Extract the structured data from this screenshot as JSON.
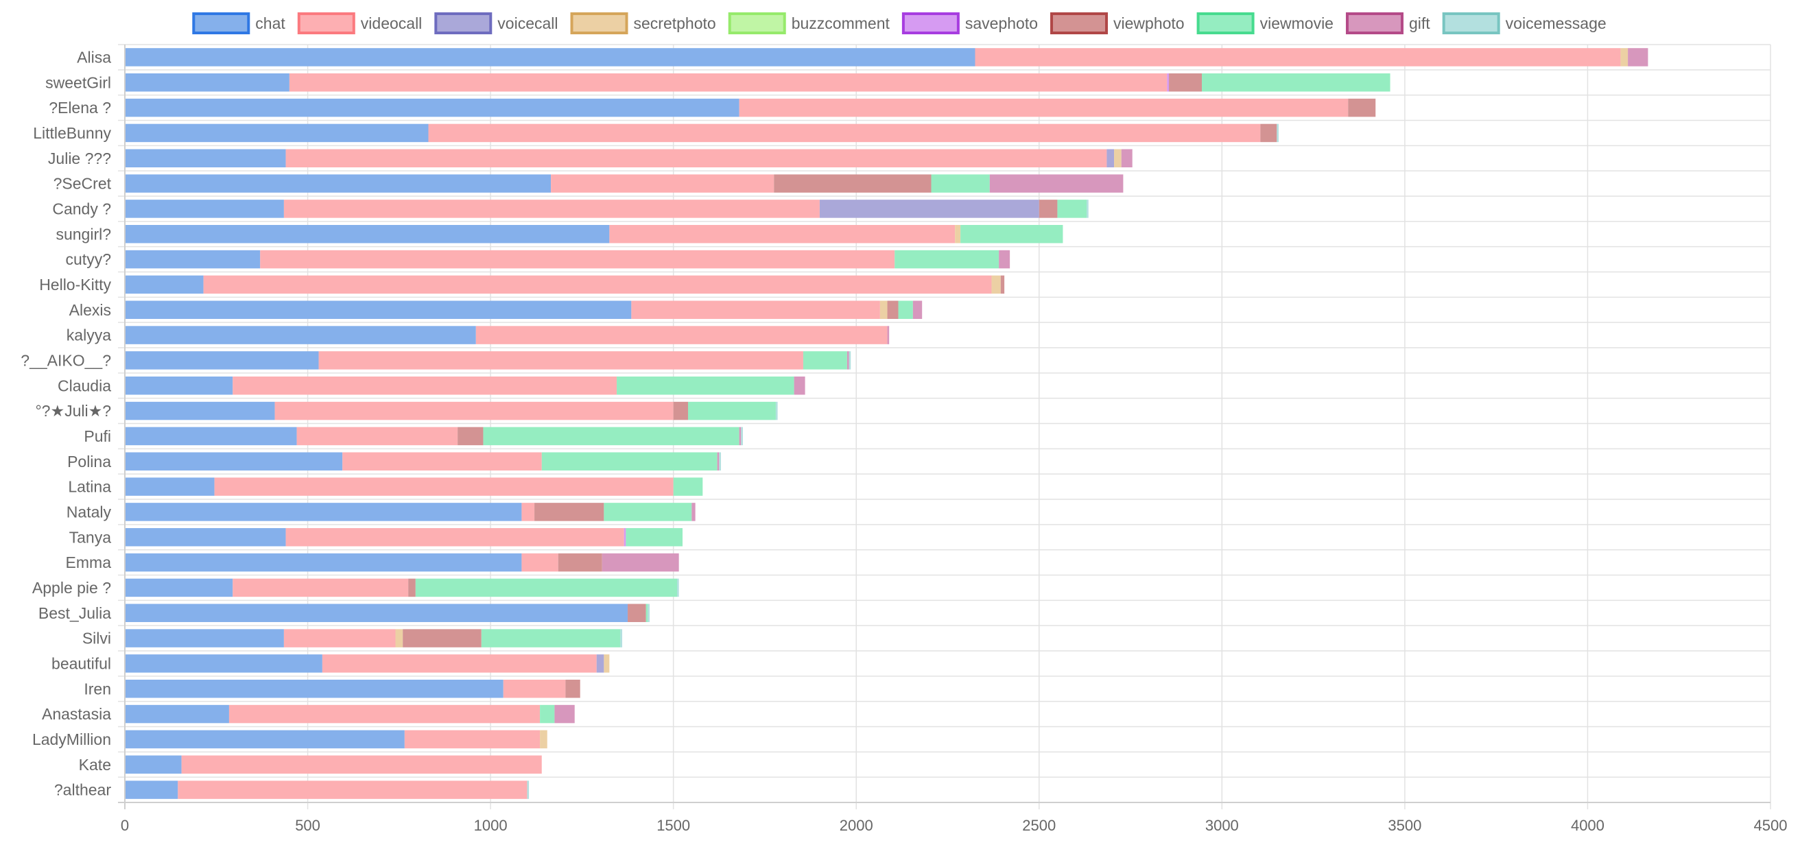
{
  "chart_data": {
    "type": "bar",
    "orientation": "horizontal",
    "stacked": true,
    "legend_position": "top",
    "grid": true,
    "xlim": [
      0,
      4500
    ],
    "x_ticks": [
      "0",
      "500",
      "1000",
      "1500",
      "2000",
      "2500",
      "3000",
      "3500",
      "4000",
      "4500"
    ],
    "categories": [
      "Alisa",
      "sweetGirl",
      "?Elena ?",
      "LittleBunny",
      "Julie ???",
      "?SeCret",
      "Candy ?",
      "sungirl?",
      "cutyy?",
      "Hello-Kitty",
      "Alexis",
      "kalyya",
      "?__AIKO__?",
      "Claudia",
      "°?★Juli★?",
      "Pufi",
      "Polina",
      "Latina",
      "Nataly",
      "Tanya",
      "Emma",
      "Apple pie ?",
      "Best_Julia",
      "Silvi",
      "beautiful",
      "Iren",
      "Anastasia",
      "LadyMillion",
      "Kate",
      "?althear"
    ],
    "series": [
      {
        "name": "chat",
        "fill": "#85b0eb",
        "stroke": "#2f78e4",
        "values": [
          2325,
          450,
          1680,
          830,
          440,
          1165,
          435,
          1325,
          370,
          215,
          1385,
          960,
          530,
          295,
          410,
          470,
          595,
          245,
          1085,
          440,
          1085,
          295,
          1375,
          435,
          540,
          1035,
          285,
          765,
          155,
          145
        ]
      },
      {
        "name": "videocall",
        "fill": "#fdafb2",
        "stroke": "#fb7a7f",
        "values": [
          1765,
          2400,
          1665,
          2275,
          2245,
          610,
          1465,
          945,
          1735,
          2155,
          680,
          1125,
          1325,
          1050,
          1090,
          440,
          545,
          1255,
          35,
          925,
          100,
          480,
          0,
          305,
          750,
          170,
          850,
          370,
          985,
          955
        ]
      },
      {
        "name": "voicecall",
        "fill": "#aaa8d9",
        "stroke": "#6e6cbf",
        "values": [
          0,
          0,
          0,
          0,
          20,
          0,
          600,
          0,
          0,
          0,
          0,
          0,
          0,
          0,
          0,
          0,
          0,
          0,
          0,
          0,
          0,
          0,
          0,
          0,
          20,
          0,
          0,
          0,
          0,
          0
        ]
      },
      {
        "name": "secretphoto",
        "fill": "#ecd0a4",
        "stroke": "#d5a55a",
        "values": [
          20,
          0,
          0,
          0,
          20,
          0,
          0,
          15,
          0,
          25,
          20,
          0,
          0,
          0,
          0,
          0,
          0,
          0,
          0,
          0,
          0,
          0,
          0,
          20,
          15,
          0,
          0,
          20,
          0,
          0
        ]
      },
      {
        "name": "buzzcomment",
        "fill": "#c0f5a5",
        "stroke": "#96ea6b",
        "values": [
          0,
          0,
          0,
          0,
          0,
          0,
          0,
          0,
          0,
          0,
          0,
          0,
          0,
          0,
          0,
          0,
          0,
          0,
          0,
          0,
          0,
          0,
          0,
          0,
          0,
          0,
          0,
          0,
          0,
          0
        ]
      },
      {
        "name": "savephoto",
        "fill": "#d69bf2",
        "stroke": "#a73de0",
        "values": [
          0,
          5,
          0,
          0,
          0,
          0,
          0,
          0,
          0,
          0,
          0,
          0,
          0,
          0,
          0,
          0,
          0,
          0,
          0,
          5,
          0,
          0,
          0,
          0,
          0,
          0,
          0,
          0,
          0,
          0
        ]
      },
      {
        "name": "viewphoto",
        "fill": "#d39393",
        "stroke": "#b04747",
        "values": [
          0,
          90,
          75,
          45,
          0,
          430,
          50,
          0,
          0,
          10,
          30,
          0,
          0,
          0,
          40,
          70,
          0,
          0,
          190,
          0,
          120,
          20,
          50,
          215,
          0,
          40,
          0,
          0,
          0,
          0
        ]
      },
      {
        "name": "viewmovie",
        "fill": "#95edc1",
        "stroke": "#47db8f",
        "values": [
          0,
          515,
          0,
          0,
          0,
          160,
          80,
          280,
          285,
          0,
          40,
          0,
          120,
          485,
          240,
          700,
          480,
          80,
          240,
          155,
          0,
          715,
          5,
          380,
          0,
          0,
          40,
          0,
          0,
          0
        ]
      },
      {
        "name": "gift",
        "fill": "#d797bd",
        "stroke": "#b44a88",
        "values": [
          55,
          0,
          0,
          0,
          30,
          365,
          0,
          0,
          30,
          0,
          25,
          5,
          5,
          30,
          0,
          5,
          5,
          0,
          10,
          0,
          210,
          0,
          0,
          0,
          0,
          0,
          55,
          0,
          0,
          0
        ]
      },
      {
        "name": "voicemessage",
        "fill": "#b3e0df",
        "stroke": "#78c5c1",
        "values": [
          0,
          0,
          0,
          5,
          0,
          0,
          5,
          0,
          0,
          0,
          0,
          0,
          5,
          0,
          5,
          5,
          5,
          0,
          0,
          0,
          0,
          5,
          5,
          5,
          0,
          0,
          0,
          0,
          0,
          5
        ]
      }
    ]
  }
}
